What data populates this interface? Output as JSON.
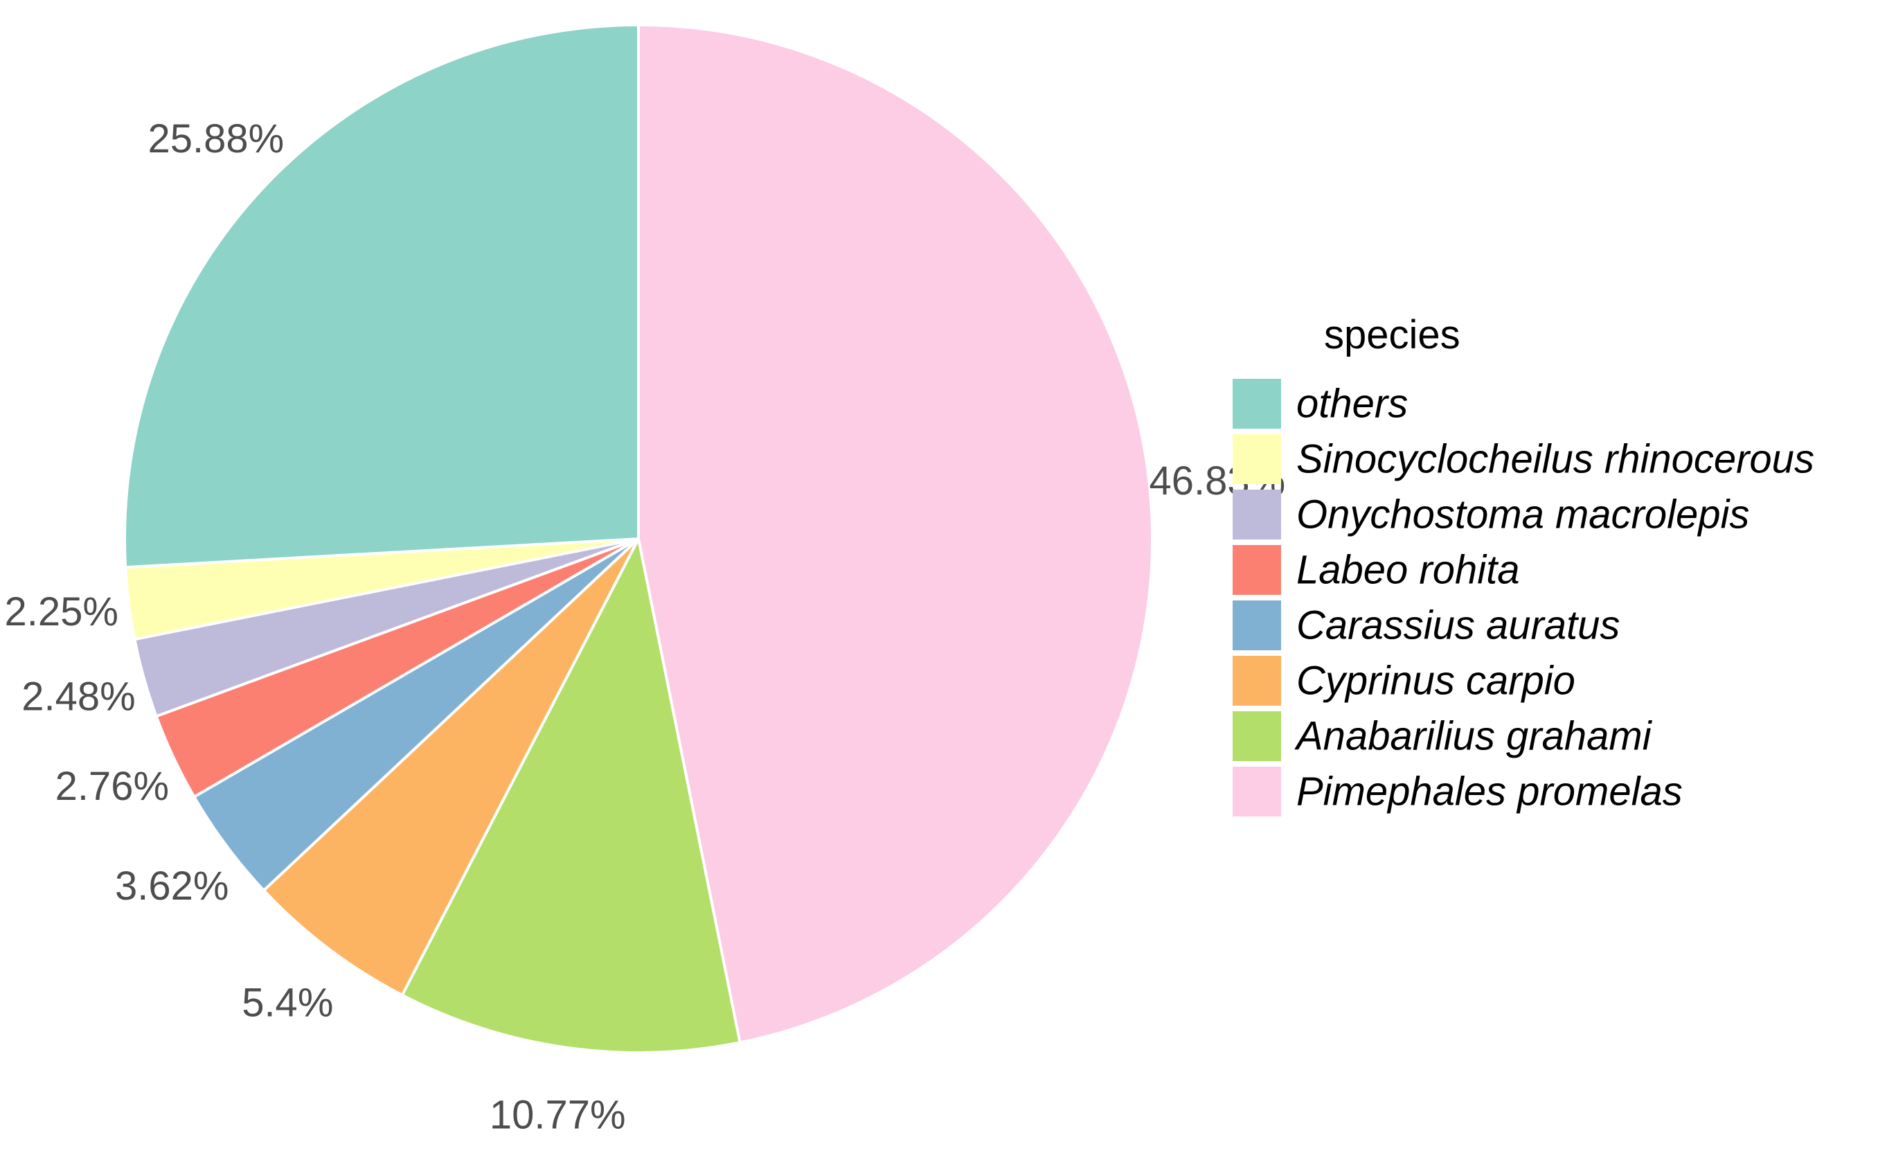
{
  "chart_data": {
    "type": "pie",
    "start_angle_deg": 0,
    "direction": "clockwise",
    "slices": [
      {
        "name": "Pimephales promelas",
        "value": 46.83,
        "label": "46.83%",
        "color": "#FCCDE5"
      },
      {
        "name": "Anabarilius grahami",
        "value": 10.77,
        "label": "10.77%",
        "color": "#B3DE69"
      },
      {
        "name": "Cyprinus carpio",
        "value": 5.4,
        "label": "5.4%",
        "color": "#FDB462"
      },
      {
        "name": "Carassius auratus",
        "value": 3.62,
        "label": "3.62%",
        "color": "#80B1D3"
      },
      {
        "name": "Labeo rohita",
        "value": 2.76,
        "label": "2.76%",
        "color": "#FB8072"
      },
      {
        "name": "Onychostoma macrolepis",
        "value": 2.48,
        "label": "2.48%",
        "color": "#BEBADA"
      },
      {
        "name": "Sinocyclocheilus rhinocerous",
        "value": 2.25,
        "label": "2.25%",
        "color": "#FFFFB3"
      },
      {
        "name": "others",
        "value": 25.88,
        "label": "25.88%",
        "color": "#8DD3C7"
      }
    ],
    "legend": {
      "title": "species",
      "placement": "right",
      "items": [
        {
          "label": "others",
          "color": "#8DD3C7"
        },
        {
          "label": "Sinocyclocheilus rhinocerous",
          "color": "#FFFFB3"
        },
        {
          "label": "Onychostoma macrolepis",
          "color": "#BEBADA"
        },
        {
          "label": "Labeo rohita",
          "color": "#FB8072"
        },
        {
          "label": "Carassius auratus",
          "color": "#80B1D3"
        },
        {
          "label": "Cyprinus carpio",
          "color": "#FDB462"
        },
        {
          "label": "Anabarilius grahami",
          "color": "#B3DE69"
        },
        {
          "label": "Pimephales promelas",
          "color": "#FCCDE5"
        }
      ]
    }
  }
}
